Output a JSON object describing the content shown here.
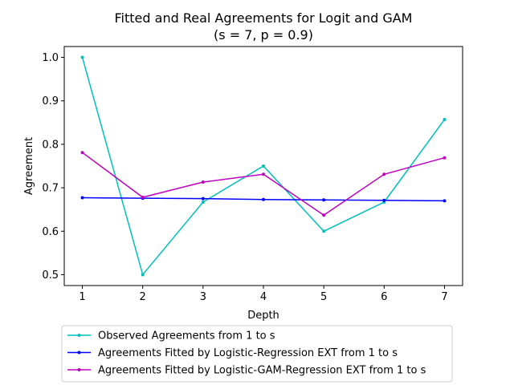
{
  "chart_data": {
    "type": "line",
    "title": "Fitted and Real Agreements for Logit and GAM",
    "subtitle": "(s = 7, p = 0.9)",
    "xlabel": "Depth",
    "ylabel": "Agreement",
    "x": [
      1,
      2,
      3,
      4,
      5,
      6,
      7
    ],
    "xticks": [
      "1",
      "2",
      "3",
      "4",
      "5",
      "6",
      "7"
    ],
    "yticks": [
      "0.5",
      "0.6",
      "0.7",
      "0.8",
      "0.9",
      "1.0"
    ],
    "xlim": [
      0.7,
      7.3
    ],
    "ylim": [
      0.475,
      1.025
    ],
    "grid": false,
    "legend_position": "below",
    "series": [
      {
        "name": "Observed Agreements from 1 to s",
        "color": "#00bfbf",
        "values": [
          1.0,
          0.5,
          0.667,
          0.75,
          0.6,
          0.667,
          0.857
        ]
      },
      {
        "name": "Agreements Fitted by Logistic-Regression EXT from 1 to s",
        "color": "#0000ff",
        "values": [
          0.677,
          0.676,
          0.675,
          0.673,
          0.672,
          0.671,
          0.67
        ]
      },
      {
        "name": "Agreements Fitted by Logistic-GAM-Regression EXT from 1 to s",
        "color": "#bf00bf",
        "values": [
          0.781,
          0.678,
          0.713,
          0.731,
          0.637,
          0.731,
          0.769
        ]
      }
    ]
  }
}
